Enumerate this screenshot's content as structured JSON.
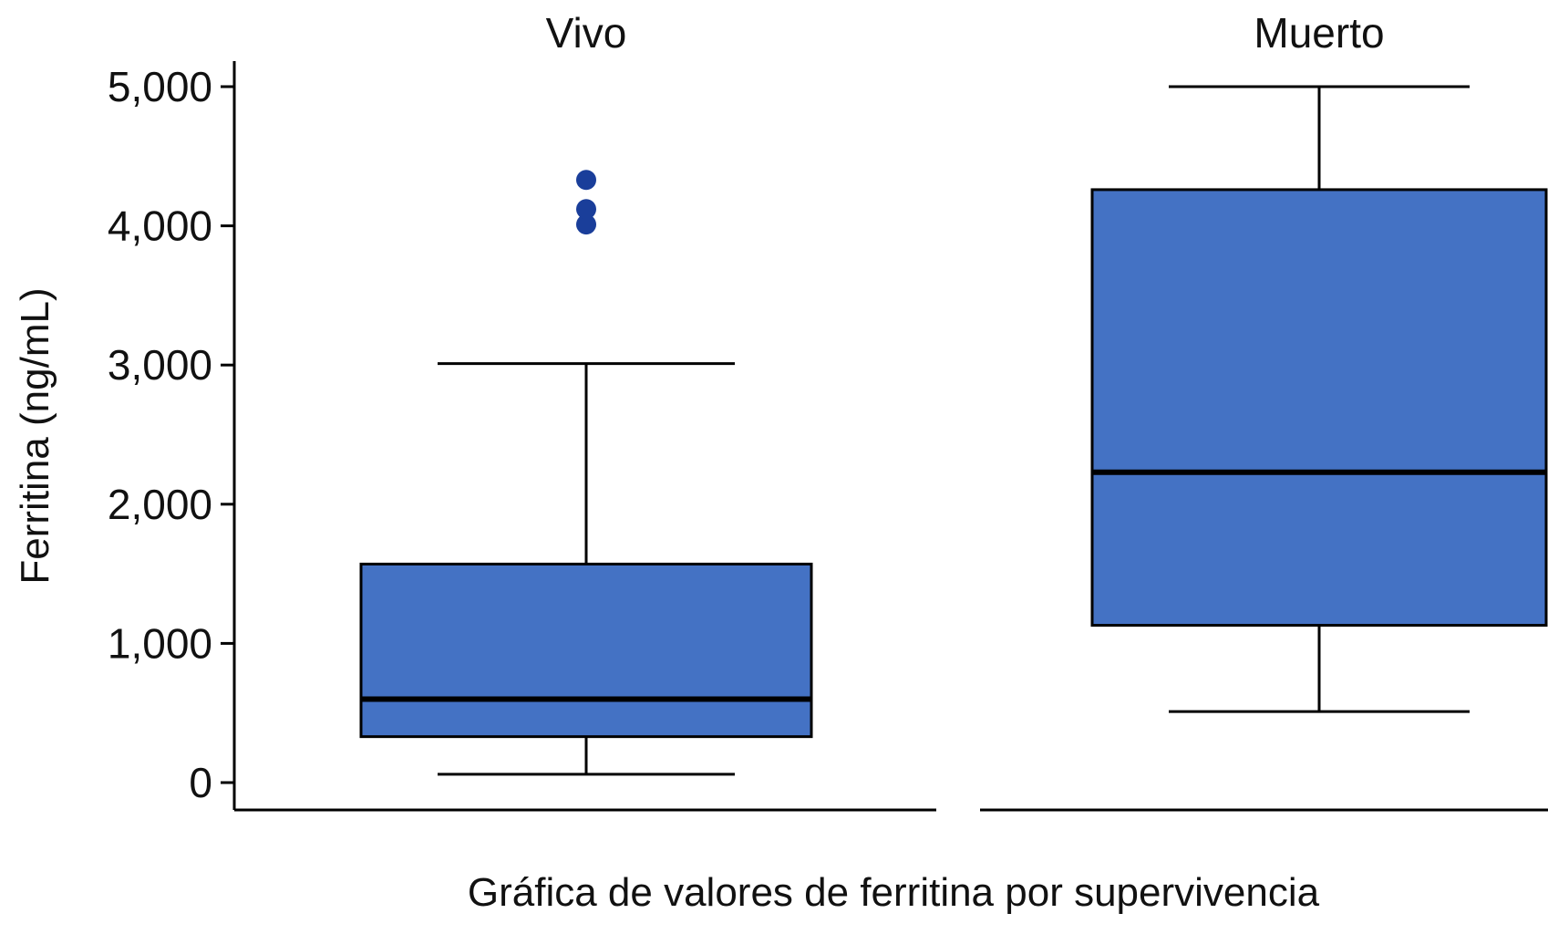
{
  "chart_data": {
    "type": "box",
    "xlabel": "Gráfica de valores de ferritina por supervivencia",
    "ylabel": "Ferritina (ng/mL)",
    "ylim": [
      0,
      5000
    ],
    "yticks": [
      0,
      1000,
      2000,
      3000,
      4000,
      5000
    ],
    "ytick_labels": [
      "0",
      "1,000",
      "2,000",
      "3,000",
      "4,000",
      "5,000"
    ],
    "grid": false,
    "panels": [
      {
        "name": "Vivo",
        "min": 60,
        "q1": 330,
        "median": 600,
        "q3": 1570,
        "max": 3010,
        "outliers": [
          4010,
          4120,
          4330
        ]
      },
      {
        "name": "Muerto",
        "min": 510,
        "q1": 1130,
        "median": 2230,
        "q3": 4260,
        "max": 5000,
        "outliers": []
      }
    ],
    "colors": {
      "box_fill": "#4472C4",
      "outlier": "#1A3E9A",
      "line": "#000000"
    }
  }
}
